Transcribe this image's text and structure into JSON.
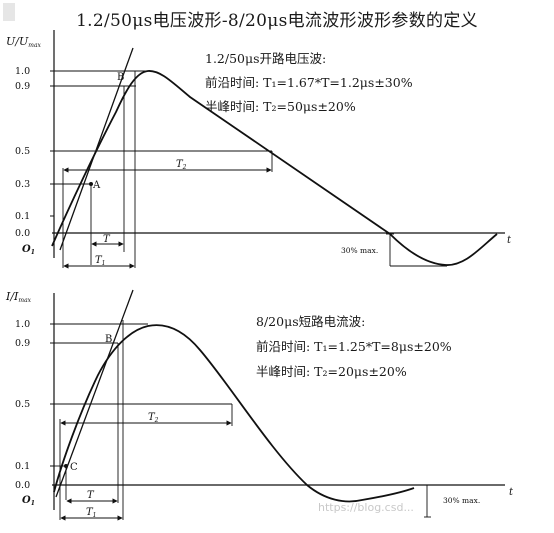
{
  "title": "1.2/50μs电压波形-8/20μs电流波形波形参数的定义",
  "watermark": "https://blog.csd...",
  "voltage": {
    "heading": "1.2/50μs开路电压波:",
    "front_time": "前沿时间: T₁=1.67*T=1.2μs±30%",
    "half_time": "半峰时间: T₂=50μs±20%",
    "ylabel": "U/U",
    "ylabel_sub": "max",
    "ticks": [
      "1.0",
      "0.9",
      "0.5",
      "0.3",
      "0.1",
      "0.0"
    ],
    "xlabel": "t",
    "origin": "O",
    "origin_sub": "1",
    "point_a": "A",
    "point_b": "B",
    "t_label": "T",
    "t1_label": "T",
    "t1_sub": "1",
    "t2_label": "T",
    "t2_sub": "2",
    "undershoot": "30% max."
  },
  "current": {
    "heading": "8/20μs短路电流波:",
    "front_time": "前沿时间: T₁=1.25*T=8μs±20%",
    "half_time": "半峰时间: T₂=20μs±20%",
    "ylabel": "I/I",
    "ylabel_sub": "max",
    "ticks": [
      "1.0",
      "0.9",
      "0.5",
      "0.1",
      "0.0"
    ],
    "xlabel": "t",
    "origin": "O",
    "origin_sub": "1",
    "point_c": "C",
    "point_b": "B",
    "t_label": "T",
    "t1_label": "T",
    "t1_sub": "1",
    "t2_label": "T",
    "t2_sub": "2",
    "undershoot": "30% max."
  }
}
